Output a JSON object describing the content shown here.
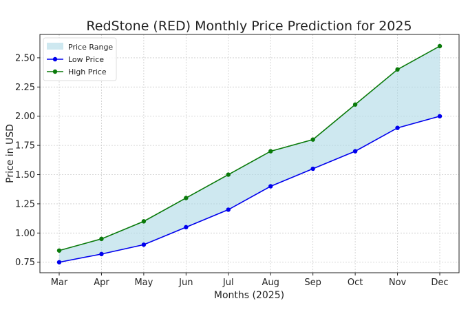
{
  "chart_data": {
    "type": "line",
    "title": "RedStone (RED) Monthly Price Prediction for 2025",
    "xlabel": "Months (2025)",
    "ylabel": "Price in USD",
    "categories": [
      "Mar",
      "Apr",
      "May",
      "Jun",
      "Jul",
      "Aug",
      "Sep",
      "Oct",
      "Nov",
      "Dec"
    ],
    "series": [
      {
        "name": "Low Price",
        "color": "#0000ee",
        "values": [
          0.75,
          0.82,
          0.9,
          1.05,
          1.2,
          1.4,
          1.55,
          1.7,
          1.9,
          2.0
        ]
      },
      {
        "name": "High Price",
        "color": "#0a7a0a",
        "values": [
          0.85,
          0.95,
          1.1,
          1.3,
          1.5,
          1.7,
          1.8,
          2.1,
          2.4,
          2.6
        ]
      }
    ],
    "fill": {
      "name": "Price Range",
      "color": "#add8e6"
    },
    "yticks": [
      "0.75",
      "1.00",
      "1.25",
      "1.50",
      "1.75",
      "2.00",
      "2.25",
      "2.50"
    ],
    "ylim": [
      0.66,
      2.7
    ],
    "grid": true,
    "legend": "top-left"
  }
}
